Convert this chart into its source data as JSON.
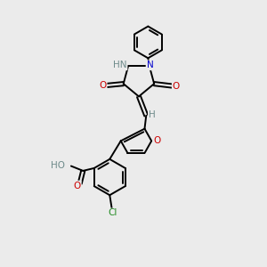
{
  "background_color": "#ebebeb",
  "figsize": [
    3.0,
    3.0
  ],
  "dpi": 100,
  "atoms": {
    "colors": {
      "C": "#000000",
      "N": "#0000cc",
      "O": "#cc0000",
      "Cl": "#228b22",
      "H": "#6e8b8b"
    }
  },
  "bond_color": "#000000",
  "bond_width": 1.4
}
